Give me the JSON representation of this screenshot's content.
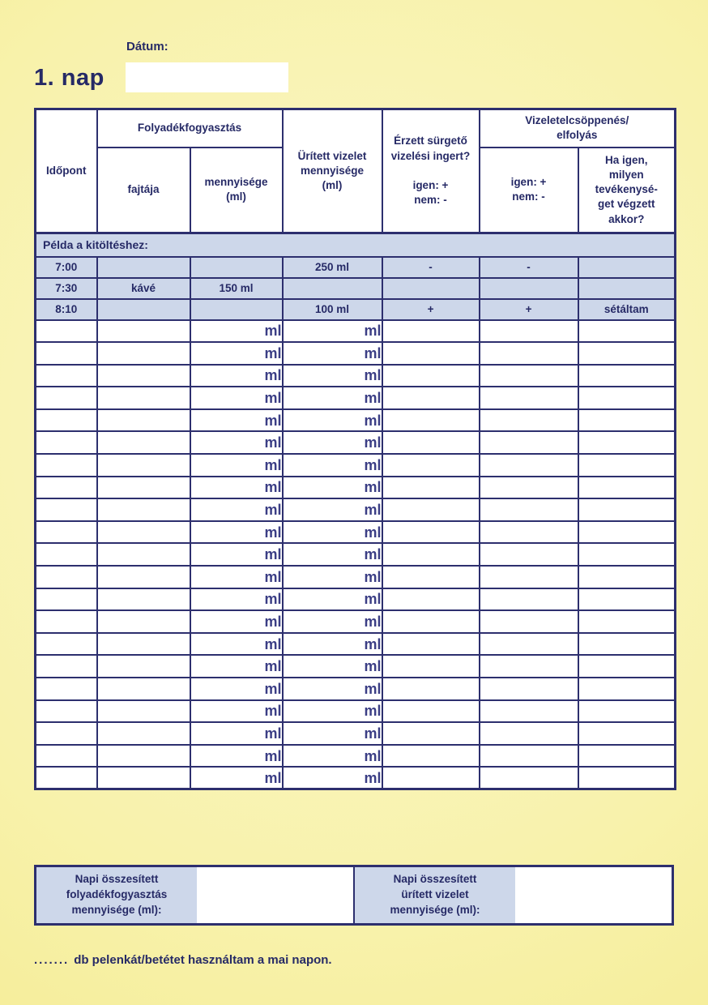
{
  "page": {
    "title": "1. nap",
    "date_label": "Dátum:",
    "date_value": ""
  },
  "colors": {
    "navy": "#2d2f6e",
    "text_navy": "#262a66",
    "row_light_blue": "#cdd7ea",
    "page_yellow_center": "#fbf6cb",
    "page_yellow_edge": "#f3e98c"
  },
  "table": {
    "headers": {
      "time": "Időpont",
      "fluid_group": "Folyadékfogyasztás",
      "fluid_type": "fajtája",
      "fluid_amount_lines": [
        "mennyisége",
        "(ml)"
      ],
      "urine_amount_lines": [
        "Ürített vizelet",
        "mennyisége",
        "(ml)"
      ],
      "urgency_lines": [
        "Érzett sürgető",
        "vizelési ingert?",
        "",
        "igen: +",
        "nem: -"
      ],
      "leakage_group_lines": [
        "Vizeletelcsöppenés/",
        "elfolyás"
      ],
      "leakage_scale_lines": [
        "igen: +",
        "nem: -"
      ],
      "leakage_activity_lines": [
        "Ha igen,",
        "milyen",
        "tevékenysé-",
        "get végzett",
        "akkor?"
      ]
    },
    "example_label": "Példa a kitöltéshez:",
    "example_rows": [
      {
        "time": "7:00",
        "fluid_type": "",
        "fluid_amount": "",
        "urine": "250 ml",
        "urgency": "-",
        "leak": "-",
        "activity": ""
      },
      {
        "time": "7:30",
        "fluid_type": "kávé",
        "fluid_amount": "150 ml",
        "urine": "",
        "urgency": "",
        "leak": "",
        "activity": ""
      },
      {
        "time": "8:10",
        "fluid_type": "",
        "fluid_amount": "",
        "urine": "100 ml",
        "urgency": "+",
        "leak": "+",
        "activity": "sétáltam"
      }
    ],
    "empty_rows": {
      "count": 21,
      "ml_label": "ml"
    }
  },
  "summary": {
    "fluid_total_label_lines": [
      "Napi összesített",
      "folyadékfogyasztás",
      "mennyisége (ml):"
    ],
    "fluid_total_value": "",
    "urine_total_label_lines": [
      "Napi összesített",
      "ürített vizelet",
      "mennyisége (ml):"
    ],
    "urine_total_value": ""
  },
  "footer": {
    "dots": ".......",
    "text": "db pelenkát/betétet használtam a mai napon."
  }
}
